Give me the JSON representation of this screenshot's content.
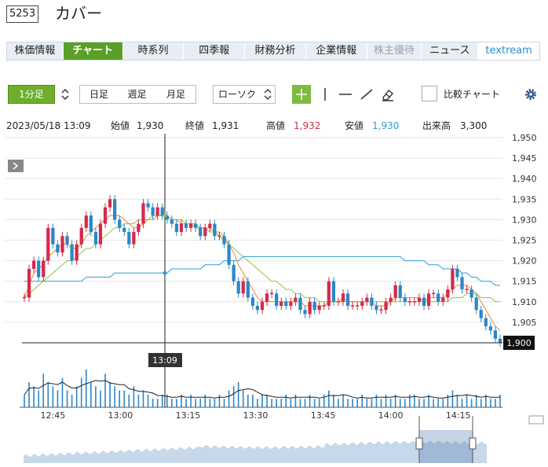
{
  "header": {
    "code": "5253",
    "company": "カバー"
  },
  "tabs": [
    {
      "label": "株価情報",
      "state": "normal"
    },
    {
      "label": "チャート",
      "state": "active"
    },
    {
      "label": "時系列",
      "state": "normal"
    },
    {
      "label": "四季報",
      "state": "normal"
    },
    {
      "label": "財務分析",
      "state": "normal"
    },
    {
      "label": "企業情報",
      "state": "normal"
    },
    {
      "label": "株主優待",
      "state": "disabled"
    },
    {
      "label": "ニュース",
      "state": "normal"
    },
    {
      "label": "textream",
      "state": "brand"
    }
  ],
  "toolbar": {
    "interval": "1分足",
    "periods": [
      "日足",
      "週足",
      "月足"
    ],
    "chart_type": "ローソク",
    "compare_label": "比較チャート"
  },
  "quote": {
    "datetime": "2023/05/18 13:09",
    "open_label": "始値",
    "open": "1,930",
    "close_label": "終値",
    "close": "1,931",
    "high_label": "高値",
    "high": "1,932",
    "low_label": "安値",
    "low": "1,930",
    "volume_label": "出来高",
    "volume": "3,300"
  },
  "colors": {
    "up": "#d6294b",
    "down": "#2c86c8",
    "ma_short": "#e08a2b",
    "ma_mid": "#8bc34a",
    "ma_long": "#2a9fd6",
    "active": "#5aa028"
  },
  "chart_data": {
    "type": "candlestick",
    "x_ticks": [
      "12:45",
      "13:00",
      "13:15",
      "13:30",
      "13:45",
      "14:00",
      "14:15"
    ],
    "y_ticks": [
      "1,950",
      "1,945",
      "1,940",
      "1,935",
      "1,930",
      "1,925",
      "1,920",
      "1,915",
      "1,910",
      "1,905"
    ],
    "ylim": [
      1900,
      1950
    ],
    "crosshair_time": "13:09",
    "last_price": "1,900",
    "close_series": [
      1911,
      1918,
      1920,
      1916,
      1920,
      1928,
      1924,
      1922,
      1926,
      1924,
      1920,
      1924,
      1928,
      1931,
      1927,
      1924,
      1929,
      1933,
      1935,
      1930,
      1928,
      1927,
      1924,
      1927,
      1929,
      1934,
      1933,
      1931,
      1933,
      1931,
      1930,
      1929,
      1927,
      1929,
      1928,
      1929,
      1928,
      1926,
      1928,
      1929,
      1926,
      1926,
      1924,
      1919,
      1915,
      1912,
      1915,
      1911,
      1909,
      1908,
      1910,
      1912,
      1912,
      1909,
      1910,
      1909,
      1910,
      1911,
      1908,
      1907,
      1910,
      1908,
      1909,
      1909,
      1915,
      1910,
      1910,
      1912,
      1909,
      1909,
      1909,
      1910,
      1911,
      1909,
      1908,
      1908,
      1910,
      1911,
      1914,
      1911,
      1910,
      1910,
      1910,
      1911,
      1909,
      1912,
      1912,
      1910,
      1911,
      1913,
      1918,
      1916,
      1913,
      1913,
      1911,
      1908,
      1906,
      1904,
      1903,
      1901,
      1900
    ],
    "ma_short": [
      1911,
      1914,
      1917,
      1918,
      1919,
      1921,
      1922,
      1923,
      1924,
      1924,
      1923,
      1923,
      1924,
      1926,
      1927,
      1928,
      1929,
      1930,
      1931,
      1931,
      1931,
      1930,
      1929,
      1928,
      1928,
      1929,
      1930,
      1930,
      1931,
      1931,
      1931,
      1930,
      1930,
      1929,
      1929,
      1929,
      1928,
      1928,
      1928,
      1928,
      1927,
      1927,
      1926,
      1924,
      1922,
      1919,
      1917,
      1915,
      1913,
      1911,
      1910,
      1910,
      1910,
      1910,
      1910,
      1910,
      1910,
      1910,
      1910,
      1909,
      1909,
      1909,
      1909,
      1909,
      1910,
      1910,
      1910,
      1911,
      1910,
      1910,
      1910,
      1910,
      1910,
      1910,
      1909,
      1909,
      1909,
      1910,
      1911,
      1911,
      1911,
      1911,
      1911,
      1911,
      1910,
      1911,
      1911,
      1911,
      1911,
      1912,
      1913,
      1914,
      1914,
      1914,
      1913,
      1912,
      1910,
      1908,
      1906,
      1904,
      1903
    ],
    "ma_mid": [
      1911,
      1912,
      1913,
      1914,
      1915,
      1916,
      1917,
      1918,
      1919,
      1920,
      1920,
      1921,
      1922,
      1923,
      1923,
      1924,
      1925,
      1926,
      1927,
      1928,
      1928,
      1929,
      1929,
      1929,
      1930,
      1930,
      1930,
      1931,
      1931,
      1931,
      1931,
      1930,
      1930,
      1930,
      1929,
      1929,
      1929,
      1928,
      1928,
      1927,
      1927,
      1926,
      1925,
      1924,
      1923,
      1922,
      1921,
      1920,
      1919,
      1918,
      1917,
      1916,
      1915,
      1915,
      1914,
      1913,
      1913,
      1912,
      1912,
      1911,
      1911,
      1911,
      1910,
      1910,
      1910,
      1910,
      1910,
      1910,
      1910,
      1910,
      1910,
      1910,
      1910,
      1910,
      1910,
      1910,
      1910,
      1910,
      1910,
      1910,
      1910,
      1910,
      1910,
      1910,
      1910,
      1910,
      1910,
      1910,
      1910,
      1910,
      1911,
      1911,
      1911,
      1912,
      1912,
      1912,
      1911,
      1911,
      1911,
      1910,
      1910
    ],
    "ma_long": [
      1915,
      1915,
      1915,
      1915,
      1915,
      1915,
      1915,
      1915,
      1915,
      1915,
      1915,
      1915,
      1915,
      1916,
      1916,
      1916,
      1916,
      1916,
      1916,
      1917,
      1917,
      1917,
      1917,
      1917,
      1917,
      1917,
      1917,
      1917,
      1917,
      1917,
      1917,
      1918,
      1918,
      1918,
      1918,
      1918,
      1918,
      1918,
      1919,
      1919,
      1919,
      1919,
      1920,
      1920,
      1920,
      1920,
      1921,
      1921,
      1921,
      1921,
      1921,
      1921,
      1921,
      1921,
      1921,
      1921,
      1921,
      1921,
      1921,
      1921,
      1921,
      1921,
      1921,
      1921,
      1921,
      1921,
      1921,
      1921,
      1921,
      1921,
      1921,
      1921,
      1921,
      1921,
      1921,
      1921,
      1921,
      1921,
      1921,
      1921,
      1920,
      1920,
      1920,
      1920,
      1920,
      1919,
      1919,
      1919,
      1918,
      1918,
      1918,
      1918,
      1917,
      1917,
      1916,
      1916,
      1915,
      1915,
      1915,
      1914,
      1914
    ],
    "volume": [
      3,
      6,
      5,
      4,
      8,
      6,
      5,
      4,
      7,
      4,
      3,
      5,
      7,
      9,
      6,
      5,
      4,
      8,
      6,
      5,
      4,
      4,
      3,
      5,
      3,
      4,
      3,
      2,
      2,
      3,
      3,
      2,
      2,
      3,
      2,
      3,
      2,
      2,
      3,
      2,
      2,
      3,
      2,
      4,
      5,
      6,
      4,
      3,
      3,
      2,
      3,
      3,
      2,
      2,
      2,
      3,
      2,
      3,
      2,
      2,
      3,
      2,
      2,
      3,
      4,
      3,
      2,
      3,
      2,
      2,
      2,
      3,
      2,
      2,
      3,
      2,
      3,
      2,
      3,
      2,
      2,
      3,
      3,
      2,
      2,
      3,
      2,
      2,
      2,
      3,
      4,
      3,
      2,
      3,
      2,
      3,
      2,
      3,
      2,
      2,
      3
    ]
  }
}
